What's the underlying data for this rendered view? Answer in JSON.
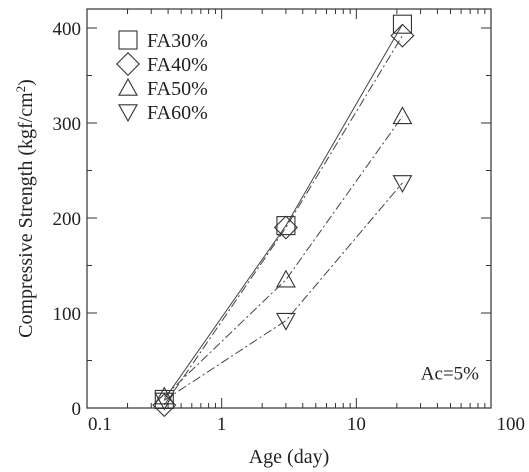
{
  "chart_data": {
    "type": "scatter",
    "title": "",
    "xlabel": "Age (day)",
    "ylabel_main": "Compressive Strength (kgf/cm",
    "ylabel_sup": "2",
    "ylabel_close": ")",
    "x_scale": "log",
    "xlim": [
      0.1,
      100
    ],
    "ylim": [
      0,
      420
    ],
    "x_ticks": [
      0.1,
      1,
      10,
      100
    ],
    "x_tick_labels": [
      "0.1",
      "1",
      "10",
      "100"
    ],
    "y_ticks": [
      0,
      100,
      200,
      300,
      400
    ],
    "y_tick_labels": [
      "0",
      "100",
      "200",
      "300",
      "400"
    ],
    "legend_position": "top-left",
    "annotation": "Ac=5%",
    "series": [
      {
        "name": "FA30%",
        "marker": "square",
        "line": "solid",
        "x": [
          0.375,
          3,
          22
        ],
        "y": [
          9,
          192,
          404
        ]
      },
      {
        "name": "FA40%",
        "marker": "diamond",
        "line": "dashdot",
        "x": [
          0.375,
          3,
          22
        ],
        "y": [
          3,
          190,
          392
        ]
      },
      {
        "name": "FA50%",
        "marker": "triangle-up",
        "line": "dashdot",
        "x": [
          0.375,
          3,
          22
        ],
        "y": [
          12,
          135,
          307
        ]
      },
      {
        "name": "FA60%",
        "marker": "triangle-down",
        "line": "dashdot",
        "x": [
          0.375,
          3,
          22
        ],
        "y": [
          8,
          92,
          237
        ]
      }
    ]
  }
}
